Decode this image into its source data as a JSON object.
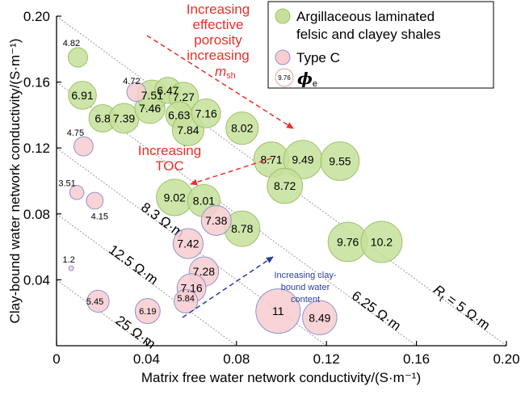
{
  "chart_data": {
    "type": "scatter",
    "xlabel": "Matrix free water network conductivity/(S·m⁻¹)",
    "ylabel": "Clay-bound water network conductivity/(S·m⁻¹)",
    "xlim": [
      0,
      0.2
    ],
    "ylim": [
      0,
      0.2
    ],
    "x_ticks": [
      "0",
      "0.04",
      "0.08",
      "0.12",
      "0.16",
      "0.20"
    ],
    "y_ticks": [
      "0.04",
      "0.08",
      "0.12",
      "0.16",
      "0.20"
    ],
    "grid": false,
    "legend_placement": "top-right",
    "legend": {
      "argillaceous_l1": "Argillaceous laminated",
      "argillaceous_l2": "felsic and clayey shales",
      "type_c": "Type C",
      "phi_sample": "9.76",
      "phi_symbol": "ϕ",
      "phi_sub": "e"
    },
    "iso_lines": [
      {
        "label": "R",
        "label_sub": "t",
        "label_rest": " = 5 Ω·m",
        "value": 0.2
      },
      {
        "label": "6.25 Ω·m",
        "value": 0.16
      },
      {
        "label": "8.3 Ω·m",
        "value": 0.12
      },
      {
        "label": "12.5 Ω·m",
        "value": 0.08
      },
      {
        "label": "25 Ω·m",
        "value": 0.04
      }
    ],
    "annotations": {
      "effective_porosity_1": "Increasing",
      "effective_porosity_2": "effective",
      "effective_porosity_3": "porosity",
      "m_sh_1": "increasing",
      "m_sh_symbol": "m",
      "m_sh_sub": "sh",
      "toc_1": "Increasing",
      "toc_2": "TOC",
      "clay_1": "Increasing clay-",
      "clay_2": "bound water",
      "clay_3": "content"
    },
    "colors": {
      "argillaceous_fill": "#c5e09a",
      "argillaceous_stroke": "#9cc26a",
      "type_c_fill": "#f7cdd0",
      "type_c_stroke": "#8d93d0",
      "annotation_red": "#e8302a",
      "annotation_blue": "#2a3d9a"
    },
    "series": [
      {
        "name": "Argillaceous laminated felsic and clayey shales",
        "points": [
          {
            "x": 0.0095,
            "y": 0.175,
            "phi": 4.82
          },
          {
            "x": 0.0115,
            "y": 0.152,
            "phi": 6.91
          },
          {
            "x": 0.0205,
            "y": 0.138,
            "phi": 6.8
          },
          {
            "x": 0.03,
            "y": 0.138,
            "phi": 7.39
          },
          {
            "x": 0.0415,
            "y": 0.144,
            "phi": 7.46
          },
          {
            "x": 0.0425,
            "y": 0.152,
            "phi": 7.51
          },
          {
            "x": 0.0495,
            "y": 0.155,
            "phi": 6.47
          },
          {
            "x": 0.0565,
            "y": 0.151,
            "phi": 7.27
          },
          {
            "x": 0.0545,
            "y": 0.14,
            "phi": 6.63
          },
          {
            "x": 0.0585,
            "y": 0.131,
            "phi": 7.84
          },
          {
            "x": 0.0665,
            "y": 0.141,
            "phi": 7.16
          },
          {
            "x": 0.0825,
            "y": 0.132,
            "phi": 8.02
          },
          {
            "x": 0.0955,
            "y": 0.113,
            "phi": 8.71
          },
          {
            "x": 0.1095,
            "y": 0.113,
            "phi": 9.49
          },
          {
            "x": 0.126,
            "y": 0.112,
            "phi": 9.55
          },
          {
            "x": 0.1015,
            "y": 0.097,
            "phi": 8.72
          },
          {
            "x": 0.0525,
            "y": 0.09,
            "phi": 9.02
          },
          {
            "x": 0.0655,
            "y": 0.088,
            "phi": 8.01
          },
          {
            "x": 0.0825,
            "y": 0.071,
            "phi": 8.78
          },
          {
            "x": 0.1295,
            "y": 0.063,
            "phi": 9.76
          },
          {
            "x": 0.1445,
            "y": 0.063,
            "phi": 10.2
          }
        ]
      },
      {
        "name": "Type C",
        "points": [
          {
            "x": 0.0355,
            "y": 0.154,
            "phi": 4.72
          },
          {
            "x": 0.012,
            "y": 0.121,
            "phi": 4.75
          },
          {
            "x": 0.009,
            "y": 0.093,
            "phi": 3.51
          },
          {
            "x": 0.017,
            "y": 0.088,
            "phi": 4.15
          },
          {
            "x": 0.071,
            "y": 0.076,
            "phi": 7.38
          },
          {
            "x": 0.0585,
            "y": 0.062,
            "phi": 7.42
          },
          {
            "x": 0.0655,
            "y": 0.045,
            "phi": 7.28
          },
          {
            "x": 0.06,
            "y": 0.035,
            "phi": 7.16
          },
          {
            "x": 0.0065,
            "y": 0.047,
            "phi": 1.2
          },
          {
            "x": 0.0185,
            "y": 0.027,
            "phi": 5.45
          },
          {
            "x": 0.0405,
            "y": 0.021,
            "phi": 6.19
          },
          {
            "x": 0.0575,
            "y": 0.027,
            "phi": 5.84
          },
          {
            "x": 0.0985,
            "y": 0.021,
            "phi": 11
          },
          {
            "x": 0.117,
            "y": 0.017,
            "phi": 8.49
          }
        ]
      }
    ]
  }
}
